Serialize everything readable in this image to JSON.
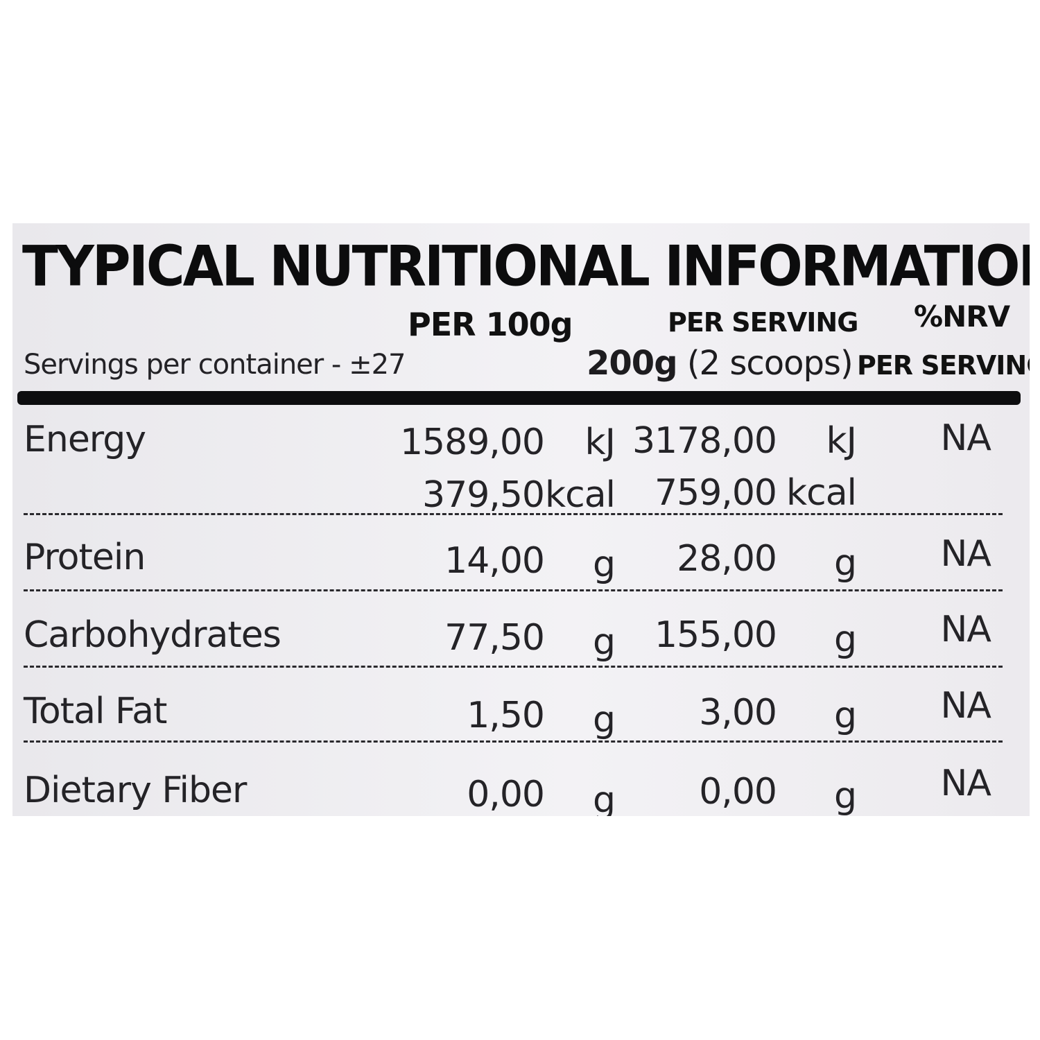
{
  "title": "TYPICAL NUTRITIONAL INFORMATION",
  "headers": {
    "per_100g": "PER 100g",
    "per_serving": "PER SERVING",
    "nrv": "%NRV",
    "nrv_per_serving": "PER SERVING"
  },
  "servings_per_container": "Servings per container - ±27",
  "serving_size": {
    "bold": "200g",
    "rest": " (2 scoops)"
  },
  "rows": [
    {
      "name": "Energy",
      "per100": "1589,00",
      "unit100": "kJ",
      "perserv": "3178,00",
      "unitserv": "kJ",
      "nrv": "NA"
    },
    {
      "name": "",
      "per100": "379,50",
      "unit100": "kcal",
      "perserv": "759,00",
      "unitserv": "kcal",
      "nrv": ""
    },
    {
      "name": "Protein",
      "per100": "14,00",
      "unit100": "g",
      "perserv": "28,00",
      "unitserv": "g",
      "nrv": "NA"
    },
    {
      "name": "Carbohydrates",
      "per100": "77,50",
      "unit100": "g",
      "perserv": "155,00",
      "unitserv": "g",
      "nrv": "NA"
    },
    {
      "name": "Total Fat",
      "per100": "1,50",
      "unit100": "g",
      "perserv": "3,00",
      "unitserv": "g",
      "nrv": "NA"
    },
    {
      "name": "Dietary Fiber",
      "per100": "0,00",
      "unit100": "g",
      "perserv": "0,00",
      "unitserv": "g",
      "nrv": "NA"
    }
  ]
}
